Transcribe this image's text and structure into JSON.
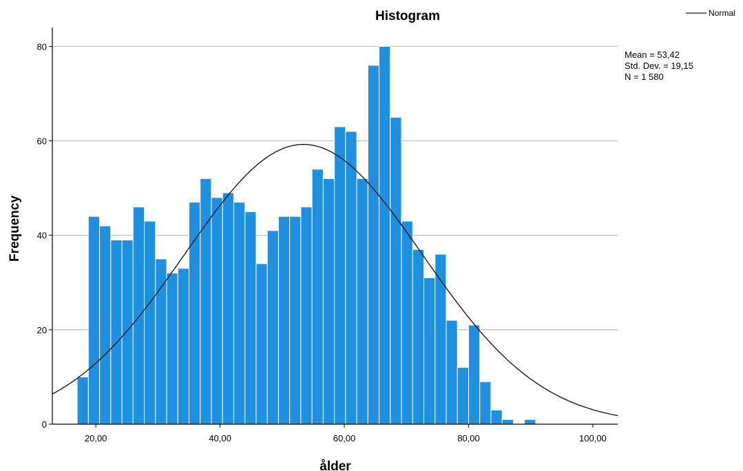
{
  "chart_data": {
    "type": "bar",
    "title": "Histogram",
    "xlabel": "ålder",
    "ylabel": "Frequency",
    "bin_width": 1.8,
    "bins_start": 17.0,
    "values": [
      10,
      44,
      42,
      39,
      39,
      46,
      43,
      35,
      32,
      33,
      47,
      52,
      48,
      49,
      47,
      45,
      34,
      41,
      44,
      44,
      46,
      54,
      52,
      63,
      62,
      52,
      76,
      80,
      65,
      43,
      37,
      31,
      36,
      22,
      12,
      21,
      9,
      3,
      1,
      0,
      1
    ],
    "xlim": [
      13.0,
      104.0
    ],
    "ylim": [
      0,
      84
    ],
    "x_ticks": [
      20,
      40,
      60,
      80,
      100
    ],
    "x_tick_labels": [
      "20,00",
      "40,00",
      "60,00",
      "80,00",
      "100,00"
    ],
    "y_ticks": [
      0,
      20,
      40,
      60,
      80
    ],
    "y_tick_labels": [
      "0",
      "20",
      "40",
      "60",
      "80"
    ],
    "grid": "horizontal",
    "bar_color": "#1f8fe0",
    "normal_curve": {
      "mean": 53.42,
      "std": 19.15,
      "n": 1580,
      "color": "#1a1a1a"
    },
    "legend": {
      "entries": [
        "Normal"
      ],
      "placement": "top-right"
    },
    "stats": [
      "Mean = 53,42",
      "Std. Dev. = 19,15",
      "N = 1 580"
    ]
  }
}
